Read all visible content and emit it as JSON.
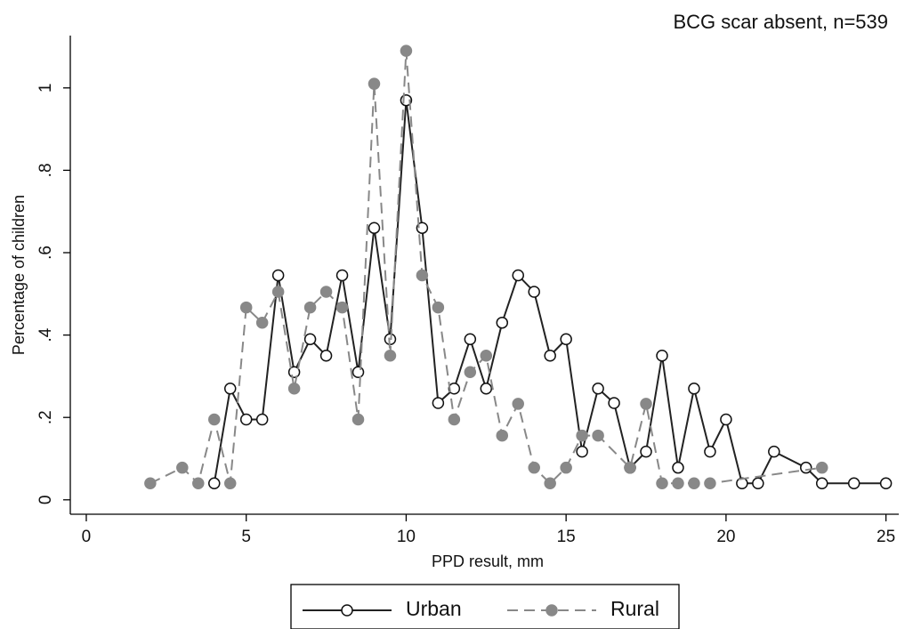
{
  "chart_data": {
    "type": "line",
    "title": "BCG scar absent, n=539",
    "x_label": "PPD result, mm",
    "y_label": "Percentage of children",
    "xlim": [
      -0.5,
      25.4
    ],
    "ylim": [
      -0.035,
      1.127
    ],
    "xticks": [
      0,
      5,
      10,
      15,
      20,
      25
    ],
    "yticks": [
      0,
      {
        "value": 0.2,
        "label": ".2"
      },
      {
        "value": 0.4,
        "label": ".4"
      },
      {
        "value": 0.6,
        "label": ".6"
      },
      {
        "value": 0.8,
        "label": ".8"
      },
      1
    ],
    "series": [
      {
        "name": "Urban",
        "color": "#222222",
        "line_style": "solid",
        "marker": "open",
        "x": [
          4,
          4.5,
          5,
          5.5,
          6,
          6.5,
          7,
          7.5,
          8,
          8.5,
          9,
          9.5,
          10,
          10.5,
          11,
          11.5,
          12,
          12.5,
          13,
          13.5,
          14,
          14.5,
          15,
          15.5,
          16,
          16.5,
          17,
          17.5,
          18,
          18.5,
          19,
          19.5,
          20,
          20.5,
          21,
          21.5,
          22.5,
          23,
          24,
          25
        ],
        "values": [
          0.04,
          0.27,
          0.195,
          0.195,
          0.545,
          0.31,
          0.39,
          0.35,
          0.545,
          0.31,
          0.66,
          0.39,
          0.97,
          0.66,
          0.235,
          0.27,
          0.39,
          0.27,
          0.43,
          0.545,
          0.505,
          0.35,
          0.39,
          0.117,
          0.27,
          0.235,
          0.078,
          0.117,
          0.35,
          0.078,
          0.27,
          0.117,
          0.195,
          0.04,
          0.04,
          0.117,
          0.078,
          0.04,
          0.04,
          0.04
        ]
      },
      {
        "name": "Rural",
        "color": "#888888",
        "line_style": "dashed",
        "marker": "filled",
        "x": [
          2,
          3,
          3.5,
          4,
          4.5,
          5,
          5.5,
          6,
          6.5,
          7,
          7.5,
          8,
          8.5,
          9,
          9.5,
          10,
          10.5,
          11,
          11.5,
          12,
          12.5,
          13,
          13.5,
          14,
          14.5,
          15,
          15.5,
          16,
          17,
          17.5,
          18,
          18.5,
          19,
          19.5,
          23
        ],
        "values": [
          0.04,
          0.078,
          0.04,
          0.195,
          0.04,
          0.467,
          0.43,
          0.505,
          0.27,
          0.467,
          0.505,
          0.467,
          0.195,
          1.01,
          0.35,
          1.09,
          0.545,
          0.467,
          0.195,
          0.31,
          0.35,
          0.156,
          0.233,
          0.078,
          0.04,
          0.078,
          0.156,
          0.156,
          0.078,
          0.233,
          0.04,
          0.04,
          0.04,
          0.04,
          0.078
        ]
      }
    ]
  }
}
